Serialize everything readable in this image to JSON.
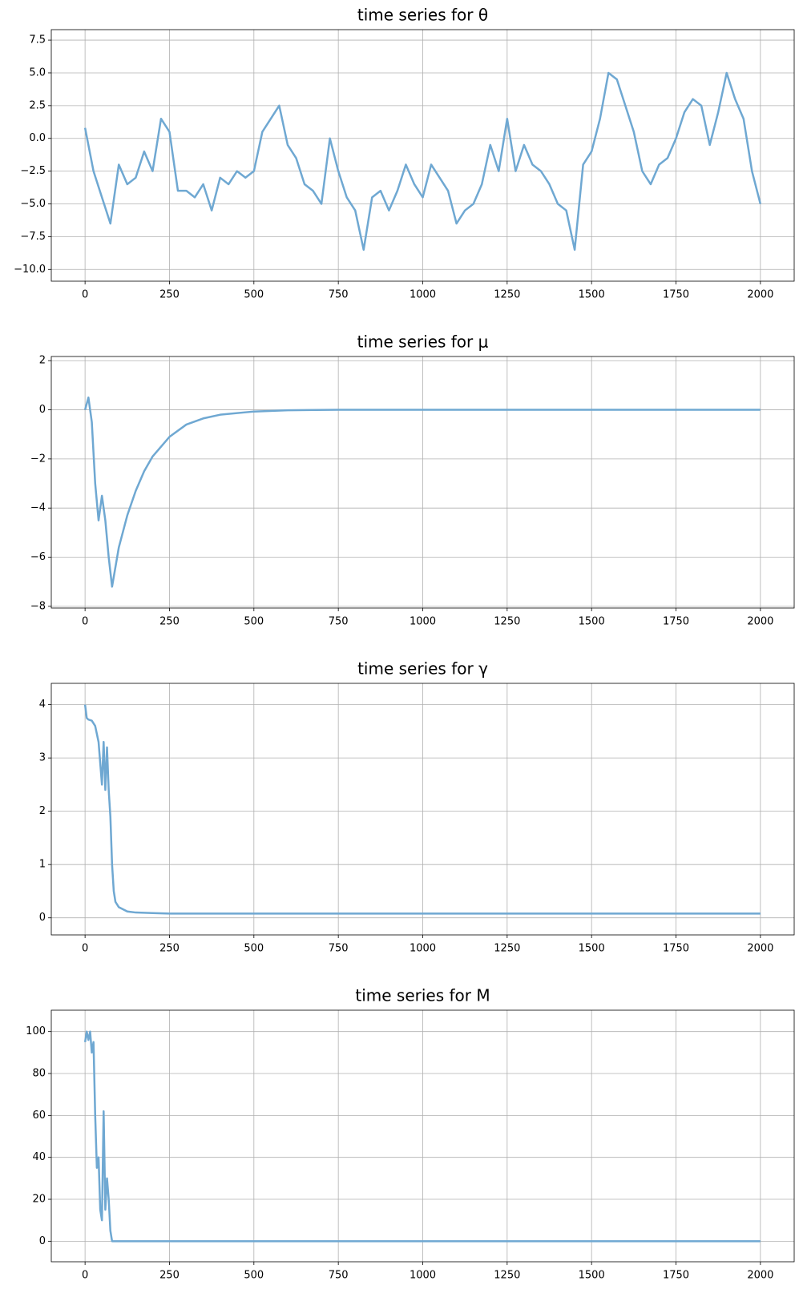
{
  "chart_data": [
    {
      "type": "line",
      "title": "time series for θ",
      "grid": true,
      "color": "#6fa8d2",
      "x": [
        0,
        25,
        50,
        75,
        100,
        125,
        150,
        175,
        200,
        225,
        250,
        275,
        300,
        325,
        350,
        375,
        400,
        425,
        450,
        475,
        500,
        525,
        550,
        575,
        600,
        625,
        650,
        675,
        700,
        725,
        750,
        775,
        800,
        825,
        850,
        875,
        900,
        925,
        950,
        975,
        1000,
        1025,
        1050,
        1075,
        1100,
        1125,
        1150,
        1175,
        1200,
        1225,
        1250,
        1275,
        1300,
        1325,
        1350,
        1375,
        1400,
        1425,
        1450,
        1475,
        1500,
        1525,
        1550,
        1575,
        1600,
        1625,
        1650,
        1675,
        1700,
        1725,
        1750,
        1775,
        1800,
        1825,
        1850,
        1875,
        1900,
        1925,
        1950,
        1975,
        2000
      ],
      "values": [
        0.8,
        -2.5,
        -4.5,
        -6.5,
        -2.0,
        -3.5,
        -3.0,
        -1.0,
        -2.5,
        1.5,
        0.5,
        -4.0,
        -4.0,
        -4.5,
        -3.5,
        -5.5,
        -3.0,
        -3.5,
        -2.5,
        -3.0,
        -2.5,
        0.5,
        1.5,
        2.5,
        -0.5,
        -1.5,
        -3.5,
        -4.0,
        -5.0,
        0.0,
        -2.5,
        -4.5,
        -5.5,
        -8.5,
        -4.5,
        -4.0,
        -5.5,
        -4.0,
        -2.0,
        -3.5,
        -4.5,
        -2.0,
        -3.0,
        -4.0,
        -6.5,
        -5.5,
        -5.0,
        -3.5,
        -0.5,
        -2.5,
        1.5,
        -2.5,
        -0.5,
        -2.0,
        -2.5,
        -3.5,
        -5.0,
        -5.5,
        -8.5,
        -2.0,
        -1.0,
        1.5,
        5.0,
        4.5,
        2.5,
        0.5,
        -2.5,
        -3.5,
        -2.0,
        -1.5,
        0.0,
        2.0,
        3.0,
        2.5,
        -0.5,
        2.0,
        5.0,
        3.0,
        1.5,
        -2.5,
        -5.0
      ],
      "xlim": [
        -100,
        2100
      ],
      "xticks": [
        0,
        250,
        500,
        750,
        1000,
        1250,
        1500,
        1750,
        2000
      ],
      "ylim": [
        -10.9,
        8.3
      ],
      "yticks": [
        {
          "value": -10,
          "label": "−10.0"
        },
        {
          "value": -7.5,
          "label": "−7.5"
        },
        {
          "value": -5,
          "label": "−5.0"
        },
        {
          "value": -2.5,
          "label": "−2.5"
        },
        {
          "value": 0,
          "label": "0.0"
        },
        2.5,
        {
          "value": 5,
          "label": "5.0"
        },
        7.5
      ]
    },
    {
      "type": "line",
      "title": "time series for μ",
      "grid": true,
      "color": "#6fa8d2",
      "x": [
        0,
        10,
        20,
        30,
        40,
        50,
        60,
        70,
        80,
        100,
        125,
        150,
        175,
        200,
        250,
        300,
        350,
        400,
        500,
        600,
        750,
        1000,
        1500,
        2000
      ],
      "values": [
        0,
        0.5,
        -0.5,
        -3,
        -4.5,
        -3.5,
        -4.5,
        -6,
        -7.2,
        -5.6,
        -4.3,
        -3.3,
        -2.5,
        -1.9,
        -1.1,
        -0.6,
        -0.35,
        -0.2,
        -0.07,
        -0.02,
        0,
        0,
        0,
        0
      ],
      "xlim": [
        -100,
        2100
      ],
      "xticks": [
        0,
        250,
        500,
        750,
        1000,
        1250,
        1500,
        1750,
        2000
      ],
      "ylim": [
        -8.07,
        2.17
      ],
      "yticks": [
        {
          "value": -8,
          "label": "−8"
        },
        {
          "value": -6,
          "label": "−6"
        },
        {
          "value": -4,
          "label": "−4"
        },
        {
          "value": -2,
          "label": "−2"
        },
        0,
        2
      ]
    },
    {
      "type": "line",
      "title": "time series for γ",
      "grid": true,
      "color": "#6fa8d2",
      "x": [
        0,
        5,
        10,
        20,
        30,
        40,
        50,
        55,
        60,
        65,
        70,
        75,
        80,
        85,
        90,
        100,
        125,
        150,
        200,
        250,
        500,
        1000,
        2000
      ],
      "values": [
        4.0,
        3.75,
        3.72,
        3.7,
        3.6,
        3.3,
        2.5,
        3.3,
        2.4,
        3.2,
        2.4,
        1.9,
        1.0,
        0.5,
        0.3,
        0.2,
        0.12,
        0.1,
        0.09,
        0.08,
        0.08,
        0.08,
        0.08
      ],
      "xlim": [
        -100,
        2100
      ],
      "xticks": [
        0,
        250,
        500,
        750,
        1000,
        1250,
        1500,
        1750,
        2000
      ],
      "ylim": [
        -0.32,
        4.4
      ],
      "yticks": [
        0,
        1,
        2,
        3,
        4
      ]
    },
    {
      "type": "line",
      "title": "time series for M",
      "grid": true,
      "color": "#6fa8d2",
      "x": [
        0,
        5,
        10,
        15,
        20,
        25,
        30,
        35,
        40,
        45,
        50,
        55,
        60,
        65,
        70,
        75,
        80,
        100,
        250,
        500,
        1000,
        2000
      ],
      "values": [
        95,
        100,
        96,
        100,
        90,
        95,
        60,
        35,
        40,
        15,
        10,
        62,
        15,
        30,
        20,
        5,
        0,
        0,
        0,
        0,
        0,
        0
      ],
      "xlim": [
        -100,
        2100
      ],
      "xticks": [
        0,
        250,
        500,
        750,
        1000,
        1250,
        1500,
        1750,
        2000
      ],
      "ylim": [
        -9.8,
        110.2
      ],
      "yticks": [
        0,
        20,
        40,
        60,
        80,
        100
      ]
    }
  ]
}
